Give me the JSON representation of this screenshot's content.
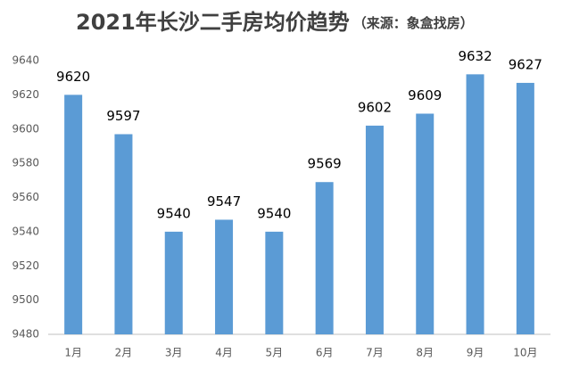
{
  "chart_data": {
    "type": "bar",
    "title": "2021年长沙二手房均价趋势",
    "subtitle": "（来源：象盒找房）",
    "categories": [
      "1月",
      "2月",
      "3月",
      "4月",
      "5月",
      "6月",
      "7月",
      "8月",
      "9月",
      "10月"
    ],
    "values": [
      9620,
      9597,
      9540,
      9547,
      9540,
      9569,
      9602,
      9609,
      9632,
      9627
    ],
    "color": "#5b9bd5",
    "ylim": [
      9480,
      9640
    ],
    "yticks": [
      9480,
      9500,
      9520,
      9540,
      9560,
      9580,
      9600,
      9620,
      9640
    ],
    "grid": false
  }
}
